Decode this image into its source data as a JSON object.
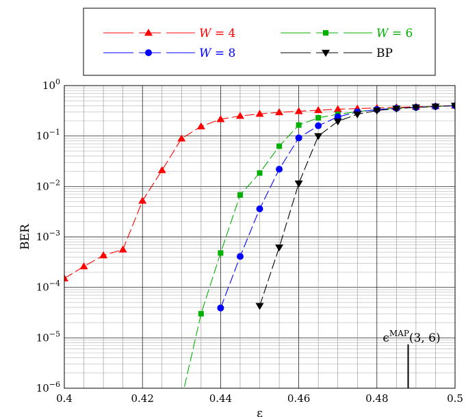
{
  "chart_data": {
    "type": "line",
    "xlabel": "ε",
    "ylabel": "BER",
    "xlim": [
      0.4,
      0.5
    ],
    "ylim": [
      1e-06,
      1
    ],
    "yscale": "log",
    "grid": true,
    "legend_position": "top",
    "x_ticks": [
      "0.4",
      "0.42",
      "0.44",
      "0.46",
      "0.48",
      "0.5"
    ],
    "y_ticks": [
      {
        "base": "10",
        "exp": "0"
      },
      {
        "base": "10",
        "exp": "−1"
      },
      {
        "base": "10",
        "exp": "−2"
      },
      {
        "base": "10",
        "exp": "−3"
      },
      {
        "base": "10",
        "exp": "−4"
      },
      {
        "base": "10",
        "exp": "−5"
      },
      {
        "base": "10",
        "exp": "−6"
      }
    ],
    "series": [
      {
        "name": "W = 4",
        "name_parts": {
          "var": "W",
          "eq": " = ",
          "num": "4"
        },
        "color": "#ff0000",
        "marker": "triangle-up",
        "points": [
          [
            0.4,
            0.00015
          ],
          [
            0.405,
            0.00026
          ],
          [
            0.41,
            0.00043
          ],
          [
            0.415,
            0.00056
          ],
          [
            0.42,
            0.0052
          ],
          [
            0.425,
            0.021
          ],
          [
            0.43,
            0.089
          ],
          [
            0.435,
            0.155
          ],
          [
            0.44,
            0.215
          ],
          [
            0.445,
            0.25
          ],
          [
            0.45,
            0.275
          ],
          [
            0.455,
            0.295
          ],
          [
            0.46,
            0.31
          ],
          [
            0.465,
            0.325
          ],
          [
            0.47,
            0.34
          ],
          [
            0.475,
            0.35
          ],
          [
            0.48,
            0.36
          ],
          [
            0.485,
            0.37
          ],
          [
            0.49,
            0.38
          ],
          [
            0.495,
            0.39
          ],
          [
            0.5,
            0.4
          ]
        ]
      },
      {
        "name": "W = 6",
        "name_parts": {
          "var": "W",
          "eq": " = ",
          "num": "6"
        },
        "color": "#00b000",
        "marker": "square",
        "points": [
          [
            0.43,
            6e-07
          ],
          [
            0.435,
            3e-05
          ],
          [
            0.44,
            0.00048
          ],
          [
            0.445,
            0.0068
          ],
          [
            0.45,
            0.0185
          ],
          [
            0.455,
            0.063
          ],
          [
            0.46,
            0.165
          ],
          [
            0.465,
            0.23
          ],
          [
            0.47,
            0.27
          ],
          [
            0.475,
            0.305
          ],
          [
            0.48,
            0.335
          ],
          [
            0.485,
            0.355
          ],
          [
            0.49,
            0.37
          ],
          [
            0.495,
            0.385
          ],
          [
            0.5,
            0.4
          ]
        ]
      },
      {
        "name": "W = 8",
        "name_parts": {
          "var": "W",
          "eq": " = ",
          "num": "8"
        },
        "color": "#0000ff",
        "marker": "circle",
        "points": [
          [
            0.44,
            3.9e-05
          ],
          [
            0.445,
            0.00041
          ],
          [
            0.45,
            0.0036
          ],
          [
            0.455,
            0.022
          ],
          [
            0.46,
            0.092
          ],
          [
            0.465,
            0.16
          ],
          [
            0.47,
            0.24
          ],
          [
            0.475,
            0.3
          ],
          [
            0.48,
            0.335
          ],
          [
            0.485,
            0.355
          ],
          [
            0.49,
            0.37
          ],
          [
            0.495,
            0.385
          ],
          [
            0.5,
            0.4
          ]
        ]
      },
      {
        "name": "BP",
        "color": "#000000",
        "marker": "triangle-down",
        "points": [
          [
            0.45,
            4.3e-05
          ],
          [
            0.455,
            0.00062
          ],
          [
            0.46,
            0.0115
          ],
          [
            0.465,
            0.1
          ],
          [
            0.47,
            0.195
          ],
          [
            0.475,
            0.27
          ],
          [
            0.48,
            0.32
          ],
          [
            0.485,
            0.35
          ],
          [
            0.49,
            0.37
          ],
          [
            0.495,
            0.385
          ],
          [
            0.5,
            0.4
          ]
        ]
      }
    ],
    "annotation": {
      "x": 0.488,
      "label_base": "ϵ",
      "label_sup": "MAP",
      "label_args": "(3, 6)"
    }
  }
}
